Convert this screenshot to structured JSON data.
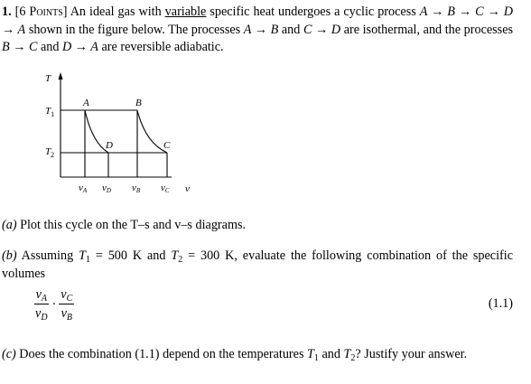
{
  "problem": {
    "number": "1.",
    "points": "[6 Points]",
    "intro": [
      "An ideal gas with",
      "variable",
      "specific heat undergoes a cyclic process",
      "A → B → C → D → A",
      "shown in the figure below. The processes",
      "A → B",
      "and",
      "C → D",
      "are isothermal, and the processes",
      "B → C",
      "and",
      "D → A",
      "are reversible adiabatic."
    ]
  },
  "figure": {
    "y_axis": "T",
    "x_axis": "v",
    "levels": [
      {
        "main": "T",
        "sub": "1"
      },
      {
        "main": "T",
        "sub": "2"
      }
    ],
    "points": [
      "A",
      "B",
      "C",
      "D"
    ],
    "volumes": [
      {
        "main": "v",
        "sub": "A"
      },
      {
        "main": "v",
        "sub": "D"
      },
      {
        "main": "v",
        "sub": "B"
      },
      {
        "main": "v",
        "sub": "C"
      }
    ]
  },
  "parts": [
    {
      "label": "(a)",
      "text": "Plot this cycle on the T–s and v–s diagrams."
    },
    {
      "label": "(b)",
      "lead": "Assuming",
      "t1": {
        "main": "T",
        "sub": "1"
      },
      "mid": "= 500 K and",
      "t2": {
        "main": "T",
        "sub": "2"
      },
      "rest": "= 300 K, evaluate the following combination of the specific volumes"
    },
    {
      "label": "(c)",
      "lead": "Does the combination (1.1) depend on the temperatures",
      "t1": {
        "main": "T",
        "sub": "1"
      },
      "mid": "and",
      "t2": {
        "main": "T",
        "sub": "2"
      },
      "rest": "? Justify your answer."
    }
  ],
  "equation": {
    "factors": [
      {
        "num": {
          "main": "v",
          "sub": "A"
        },
        "den": {
          "main": "v",
          "sub": "D"
        }
      },
      {
        "num": {
          "main": "v",
          "sub": "C"
        },
        "den": {
          "main": "v",
          "sub": "B"
        }
      }
    ],
    "operator": "·",
    "tag": "(1.1)"
  }
}
